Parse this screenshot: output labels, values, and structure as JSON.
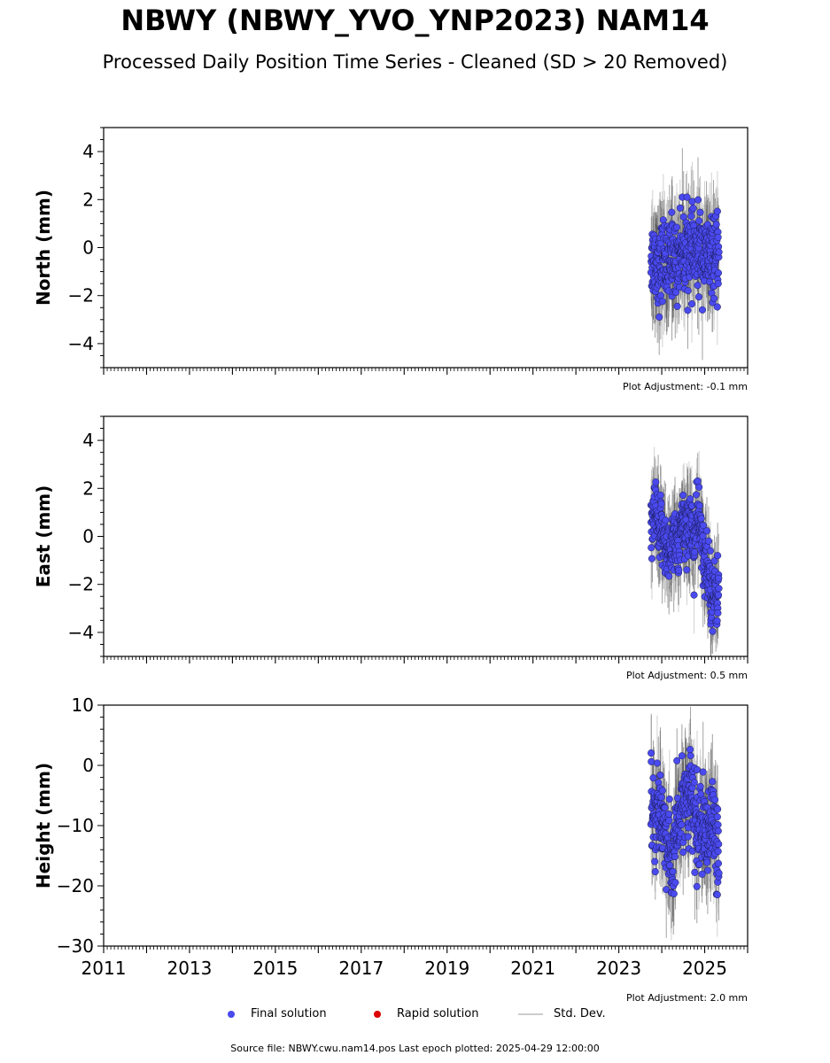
{
  "title": "NBWY (NBWY_YVO_YNP2023) NAM14",
  "subtitle": "Processed Daily Position Time Series - Cleaned (SD > 20 Removed)",
  "source": "Source file: NBWY.cwu.nam14.pos  Last epoch plotted: 2025-04-29 12:00:00",
  "legend": {
    "final": "Final solution",
    "rapid": "Rapid solution",
    "stddev": "Std. Dev."
  },
  "colors": {
    "final": "#4a4aef",
    "rapid": "#dd0000",
    "stddev": "#cccccc"
  },
  "chart_data": [
    {
      "type": "scatter",
      "ylabel": "North (mm)",
      "adjustment": "Plot Adjustment: -0.1 mm",
      "xlim": [
        2011,
        2026
      ],
      "ylim": [
        -5,
        5
      ],
      "yticks": [
        -4,
        -2,
        0,
        2,
        4
      ],
      "yticklabels": [
        "−4",
        "−2",
        "0",
        "2",
        "4"
      ],
      "start": 2023.75,
      "end": 2025.33,
      "series": [
        {
          "x": [
            2023.75,
            2023.8,
            2023.85,
            2023.9,
            2023.95,
            2024.0,
            2024.05,
            2024.1,
            2024.15,
            2024.2,
            2024.25,
            2024.3,
            2024.35,
            2024.4,
            2024.45,
            2024.5,
            2024.55,
            2024.6,
            2024.65,
            2024.7,
            2024.75,
            2024.8,
            2024.85,
            2024.9,
            2024.95,
            2025.0,
            2025.05,
            2025.1,
            2025.15,
            2025.2,
            2025.25,
            2025.3
          ],
          "y": [
            -0.2,
            -0.6,
            -0.4,
            -0.8,
            -1.0,
            -0.5,
            -0.3,
            -0.6,
            -0.9,
            -0.4,
            -0.2,
            -0.5,
            -0.7,
            -0.3,
            0.1,
            -0.2,
            -0.4,
            0.2,
            0.0,
            -0.3,
            -0.1,
            -0.5,
            -0.2,
            0.1,
            -0.3,
            -0.6,
            -0.2,
            -0.4,
            -0.5,
            -0.3,
            -0.6,
            -0.4
          ],
          "sd": 1.5,
          "scatter": 0.8,
          "min": -3.0,
          "max": 2.1
        }
      ]
    },
    {
      "type": "scatter",
      "ylabel": "East (mm)",
      "adjustment": "Plot Adjustment: 0.5 mm",
      "xlim": [
        2011,
        2026
      ],
      "ylim": [
        -5,
        5
      ],
      "yticks": [
        -4,
        -2,
        0,
        2,
        4
      ],
      "yticklabels": [
        "−4",
        "−2",
        "0",
        "2",
        "4"
      ],
      "start": 2023.75,
      "end": 2025.33,
      "series": [
        {
          "x": [
            2023.75,
            2023.8,
            2023.85,
            2023.9,
            2023.95,
            2024.0,
            2024.05,
            2024.1,
            2024.15,
            2024.2,
            2024.25,
            2024.3,
            2024.35,
            2024.4,
            2024.45,
            2024.5,
            2024.55,
            2024.6,
            2024.65,
            2024.7,
            2024.75,
            2024.8,
            2024.85,
            2024.9,
            2024.95,
            2025.0,
            2025.05,
            2025.1,
            2025.15,
            2025.2,
            2025.25,
            2025.3
          ],
          "y": [
            0.0,
            0.6,
            1.0,
            0.4,
            -0.2,
            0.3,
            0.1,
            -0.5,
            -0.9,
            -0.4,
            -0.1,
            0.2,
            -0.3,
            -0.6,
            0.3,
            0.6,
            0.2,
            0.4,
            0.8,
            0.3,
            -0.5,
            0.5,
            1.0,
            0.2,
            -0.6,
            -1.2,
            -1.0,
            -1.5,
            -2.2,
            -2.5,
            -2.4,
            -2.3
          ],
          "sd": 1.3,
          "scatter": 0.7,
          "min": -4.9,
          "max": 3.3
        }
      ]
    },
    {
      "type": "scatter",
      "ylabel": "Height (mm)",
      "adjustment": "Plot Adjustment: 2.0 mm",
      "xlim": [
        2011,
        2026
      ],
      "ylim": [
        -30,
        10
      ],
      "yticks": [
        -30,
        -20,
        -10,
        0,
        10
      ],
      "yticklabels": [
        "−30",
        "−20",
        "−10",
        "0",
        "10"
      ],
      "xticks": [
        2011,
        2013,
        2015,
        2017,
        2019,
        2021,
        2023,
        2025
      ],
      "start": 2023.75,
      "end": 2025.33,
      "series": [
        {
          "x": [
            2023.75,
            2023.8,
            2023.85,
            2023.9,
            2023.95,
            2024.0,
            2024.05,
            2024.1,
            2024.15,
            2024.2,
            2024.25,
            2024.3,
            2024.35,
            2024.4,
            2024.45,
            2024.5,
            2024.55,
            2024.6,
            2024.65,
            2024.7,
            2024.75,
            2024.8,
            2024.85,
            2024.9,
            2024.95,
            2025.0,
            2025.05,
            2025.1,
            2025.15,
            2025.2,
            2025.25,
            2025.3
          ],
          "y": [
            -4,
            -8,
            -10,
            -7,
            -6,
            -9,
            -10,
            -12,
            -14,
            -16,
            -17,
            -13,
            -11,
            -10,
            -8,
            -6,
            -5,
            -4,
            -6,
            -5,
            -8,
            -10,
            -12,
            -9,
            -11,
            -13,
            -14,
            -12,
            -10,
            -9,
            -12,
            -15
          ],
          "sd": 6,
          "scatter": 3.5,
          "min": -26,
          "max": 7.5
        }
      ]
    }
  ]
}
